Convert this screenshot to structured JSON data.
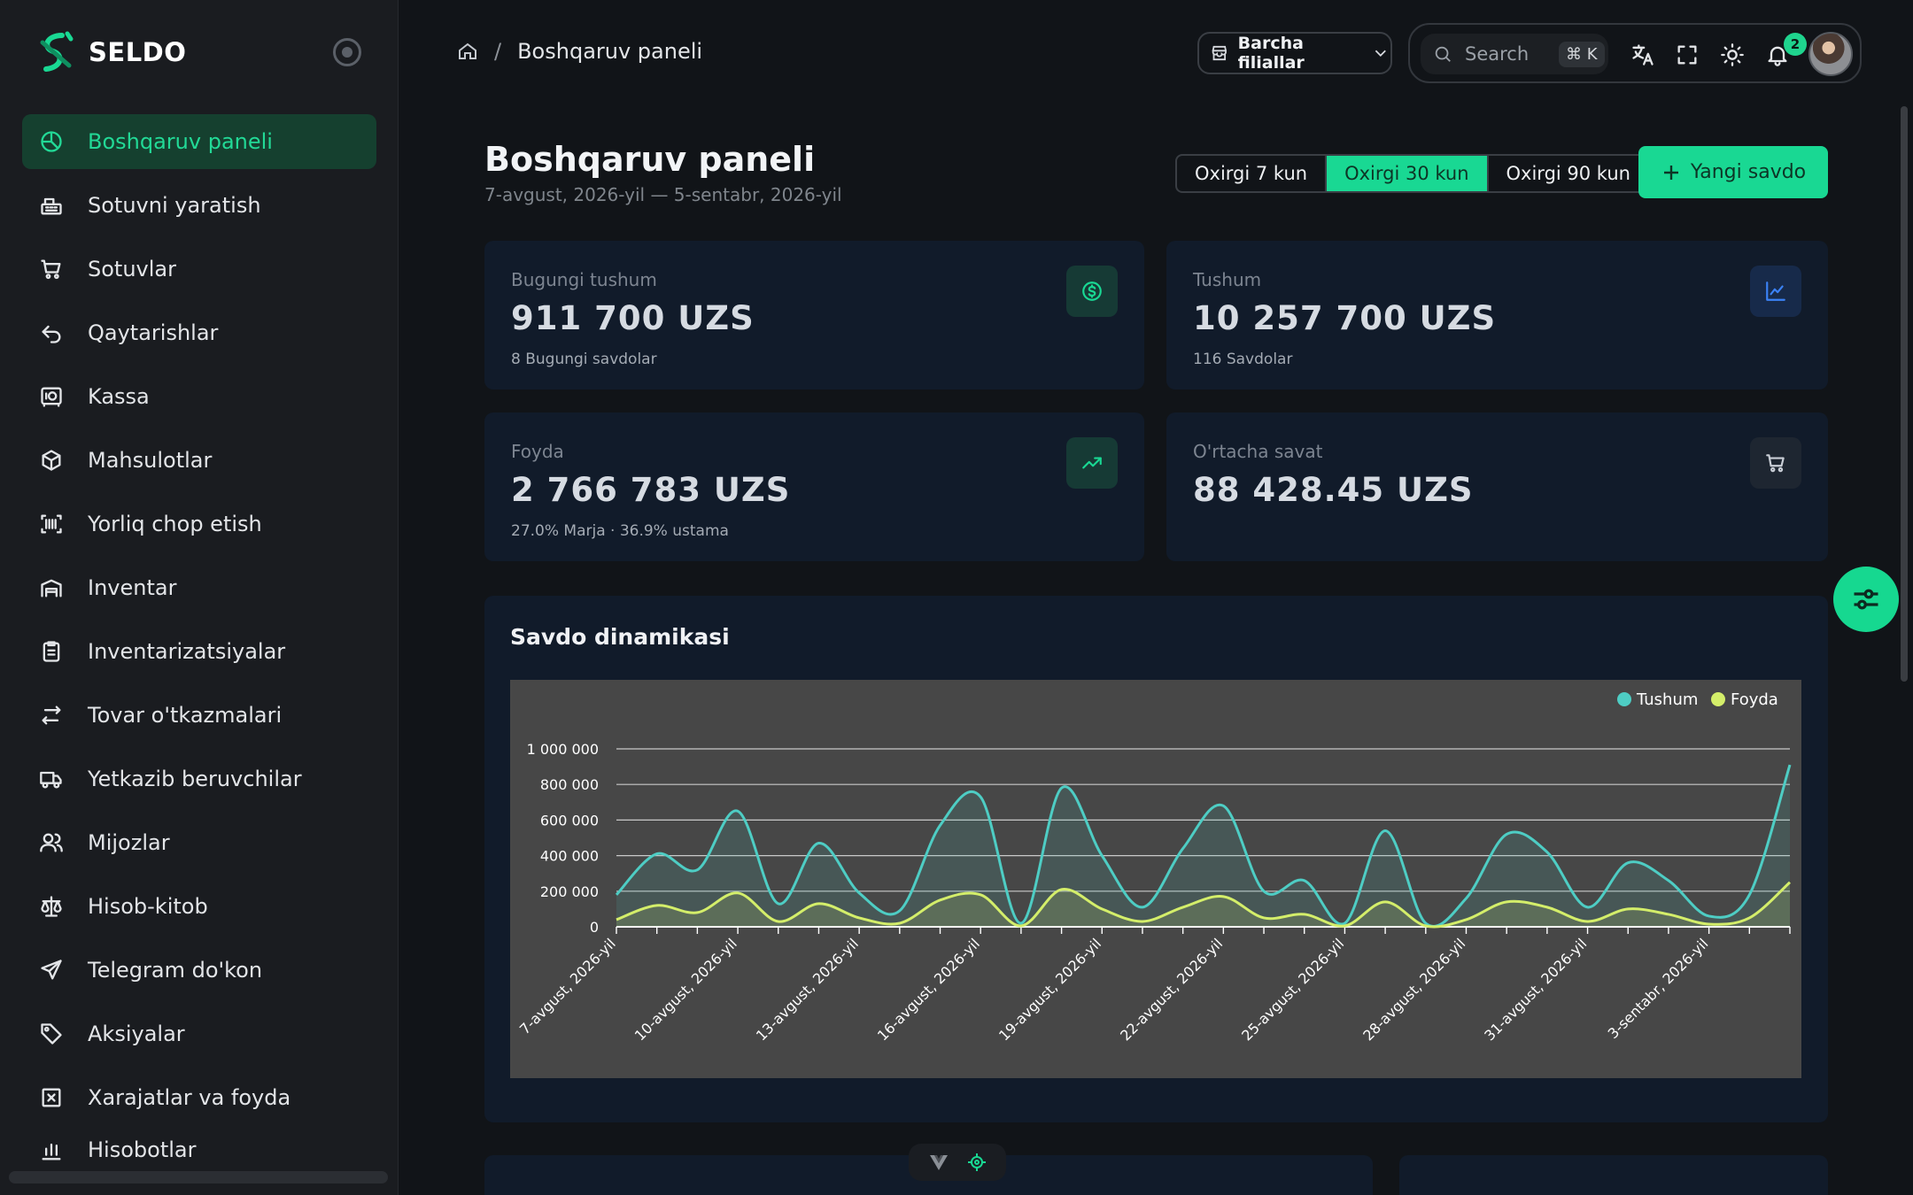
{
  "app": {
    "name": "SELDO"
  },
  "sidebar": {
    "items": [
      {
        "label": "Boshqaruv paneli",
        "icon": "dashboard-icon",
        "active": true
      },
      {
        "label": "Sotuvni yaratish",
        "icon": "cash-register-icon"
      },
      {
        "label": "Sotuvlar",
        "icon": "cart-icon"
      },
      {
        "label": "Qaytarishlar",
        "icon": "return-icon"
      },
      {
        "label": "Kassa",
        "icon": "safe-icon"
      },
      {
        "label": "Mahsulotlar",
        "icon": "box-icon"
      },
      {
        "label": "Yorliq chop etish",
        "icon": "barcode-icon"
      },
      {
        "label": "Inventar",
        "icon": "warehouse-icon"
      },
      {
        "label": "Inventarizatsiyalar",
        "icon": "clipboard-icon"
      },
      {
        "label": "Tovar o'tkazmalari",
        "icon": "transfer-icon"
      },
      {
        "label": "Yetkazib beruvchilar",
        "icon": "truck-icon"
      },
      {
        "label": "Mijozlar",
        "icon": "users-icon"
      },
      {
        "label": "Hisob-kitob",
        "icon": "scale-icon"
      },
      {
        "label": "Telegram do'kon",
        "icon": "send-icon"
      },
      {
        "label": "Aksiyalar",
        "icon": "tag-icon"
      },
      {
        "label": "Xarajatlar va foyda",
        "icon": "receipt-icon"
      },
      {
        "label": "Hisobotlar",
        "icon": "report-icon"
      }
    ]
  },
  "header": {
    "breadcrumb_current": "Boshqaruv paneli",
    "breadcrumb_separator": "/",
    "branch_select": "Barcha filiallar",
    "search_placeholder": "Search",
    "search_shortcut": "⌘ K",
    "notification_count": "2"
  },
  "page": {
    "title": "Boshqaruv paneli",
    "date_range": "7-avgust, 2026-yil — 5-sentabr, 2026-yil",
    "ranges": [
      "Oxirgi 7 kun",
      "Oxirgi 30 kun",
      "Oxirgi 90 kun"
    ],
    "active_range": "Oxirgi 30 kun",
    "new_sale_button": "Yangi savdo"
  },
  "stats": {
    "today_revenue": {
      "label": "Bugungi tushum",
      "value": "911 700 UZS",
      "sub": "8 Bugungi savdolar",
      "icon": "dollar-icon"
    },
    "revenue": {
      "label": "Tushum",
      "value": "10 257 700 UZS",
      "sub": "116 Savdolar",
      "icon": "chart-line-icon"
    },
    "profit": {
      "label": "Foyda",
      "value": "2 766 783 UZS",
      "sub": "27.0% Marja · 36.9% ustama",
      "icon": "trending-up-icon"
    },
    "avg_basket": {
      "label": "O'rtacha savat",
      "value": "88 428.45 UZS",
      "icon": "cart-icon"
    }
  },
  "colors": {
    "accent": "#19d893",
    "revenue_series": "#4ecdc4",
    "profit_series": "#d4ee6a"
  },
  "chart_data": {
    "type": "area",
    "title": "Savdo dinamikasi",
    "x": [
      "7-avgust, 2026-yil",
      "8-avgust, 2026-yil",
      "9-avgust, 2026-yil",
      "10-avgust, 2026-yil",
      "11-avgust, 2026-yil",
      "12-avgust, 2026-yil",
      "13-avgust, 2026-yil",
      "14-avgust, 2026-yil",
      "15-avgust, 2026-yil",
      "16-avgust, 2026-yil",
      "17-avgust, 2026-yil",
      "18-avgust, 2026-yil",
      "19-avgust, 2026-yil",
      "20-avgust, 2026-yil",
      "21-avgust, 2026-yil",
      "22-avgust, 2026-yil",
      "23-avgust, 2026-yil",
      "24-avgust, 2026-yil",
      "25-avgust, 2026-yil",
      "26-avgust, 2026-yil",
      "27-avgust, 2026-yil",
      "28-avgust, 2026-yil",
      "29-avgust, 2026-yil",
      "30-avgust, 2026-yil",
      "31-avgust, 2026-yil",
      "1-sentabr, 2026-yil",
      "2-sentabr, 2026-yil",
      "3-sentabr, 2026-yil",
      "4-sentabr, 2026-yil",
      "5-sentabr, 2026-yil"
    ],
    "tick_labels": [
      "7-avgust, 2026-yil",
      "10-avgust, 2026-yil",
      "13-avgust, 2026-yil",
      "16-avgust, 2026-yil",
      "19-avgust, 2026-yil",
      "22-avgust, 2026-yil",
      "25-avgust, 2026-yil",
      "28-avgust, 2026-yil",
      "31-avgust, 2026-yil",
      "3-sentabr, 2026-yil"
    ],
    "series": [
      {
        "name": "Tushum",
        "values": [
          180000,
          410000,
          320000,
          650000,
          130000,
          470000,
          190000,
          90000,
          570000,
          730000,
          20000,
          780000,
          400000,
          110000,
          440000,
          680000,
          200000,
          260000,
          20000,
          540000,
          20000,
          160000,
          520000,
          420000,
          110000,
          360000,
          260000,
          60000,
          180000,
          910000
        ]
      },
      {
        "name": "Foyda",
        "values": [
          40000,
          120000,
          80000,
          190000,
          30000,
          130000,
          50000,
          20000,
          150000,
          180000,
          5000,
          210000,
          100000,
          30000,
          110000,
          170000,
          50000,
          70000,
          5000,
          140000,
          5000,
          40000,
          140000,
          110000,
          30000,
          100000,
          70000,
          15000,
          50000,
          250000
        ]
      }
    ],
    "yticks": [
      "0",
      "200 000",
      "400 000",
      "600 000",
      "800 000",
      "1 000 000"
    ],
    "ylim": [
      0,
      1000000
    ],
    "legend": "top-right",
    "grid": true
  }
}
